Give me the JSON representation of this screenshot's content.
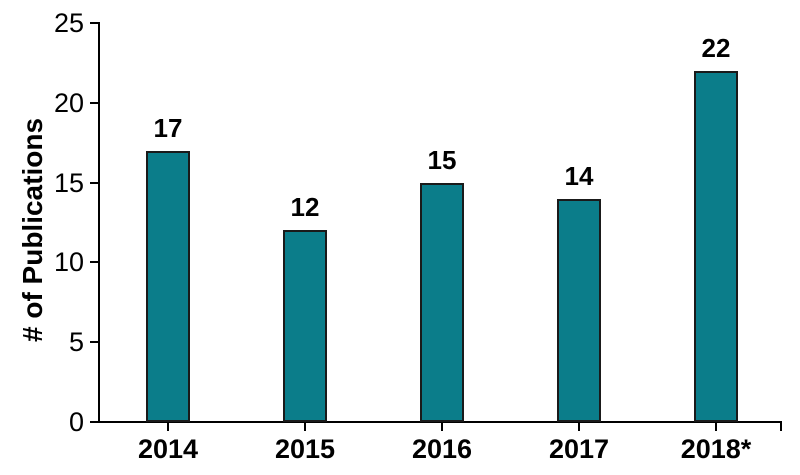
{
  "chart_data": {
    "type": "bar",
    "title": "",
    "xlabel": "",
    "ylabel": "# of Publications",
    "categories": [
      "2014",
      "2015",
      "2016",
      "2017",
      "2018*"
    ],
    "values": [
      17,
      12,
      15,
      14,
      22
    ],
    "data_labels": [
      "17",
      "12",
      "15",
      "14",
      "22"
    ],
    "ylim": [
      0,
      25
    ],
    "yticks": [
      0,
      5,
      10,
      15,
      20,
      25
    ],
    "ytick_labels": [
      "0",
      "5",
      "10",
      "15",
      "20",
      "25"
    ],
    "grid": false,
    "legend": "none",
    "colors": {
      "bar_fill": "#0b7d8a",
      "bar_border": "#1a1a1a",
      "axis": "#000000",
      "text": "#000000",
      "background": "#ffffff"
    }
  }
}
